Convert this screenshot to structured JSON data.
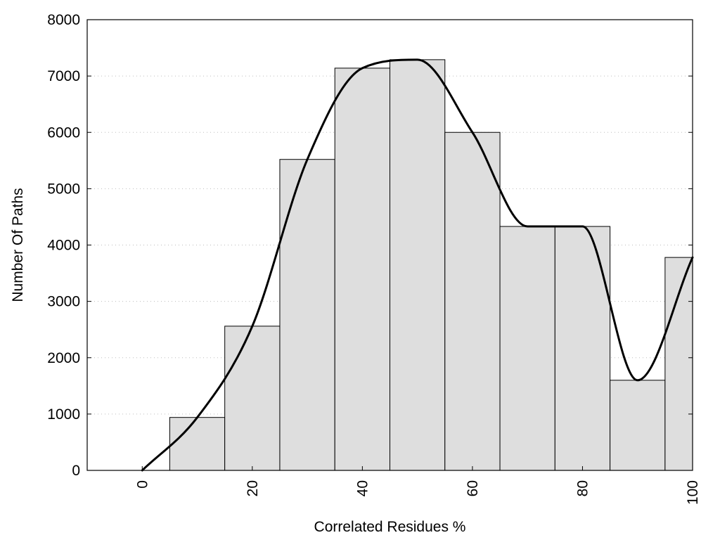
{
  "chart_data": {
    "type": "bar",
    "xlabel": "Correlated Residues %",
    "ylabel": "Number Of Paths",
    "xlim": [
      -10,
      100
    ],
    "ylim": [
      0,
      8000
    ],
    "x_ticks": [
      0,
      20,
      40,
      60,
      80,
      100
    ],
    "y_ticks": [
      0,
      1000,
      2000,
      3000,
      4000,
      5000,
      6000,
      7000,
      8000
    ],
    "grid": "horizontal-dotted",
    "bar_color": "#dedede",
    "bin_width": 10,
    "bins": [
      {
        "center": 0,
        "value": 0
      },
      {
        "center": 10,
        "value": 940
      },
      {
        "center": 20,
        "value": 2560
      },
      {
        "center": 30,
        "value": 5520
      },
      {
        "center": 40,
        "value": 7140
      },
      {
        "center": 50,
        "value": 7290
      },
      {
        "center": 60,
        "value": 6000
      },
      {
        "center": 70,
        "value": 4330
      },
      {
        "center": 80,
        "value": 4330
      },
      {
        "center": 90,
        "value": 1600
      },
      {
        "center": 100,
        "value": 3780
      }
    ],
    "curve": {
      "type": "line",
      "smooth": true,
      "x": [
        0,
        10,
        20,
        30,
        40,
        50,
        60,
        70,
        80,
        90,
        100
      ],
      "y": [
        0,
        940,
        2560,
        5520,
        7140,
        7290,
        6000,
        4330,
        4330,
        1600,
        3780
      ]
    }
  }
}
